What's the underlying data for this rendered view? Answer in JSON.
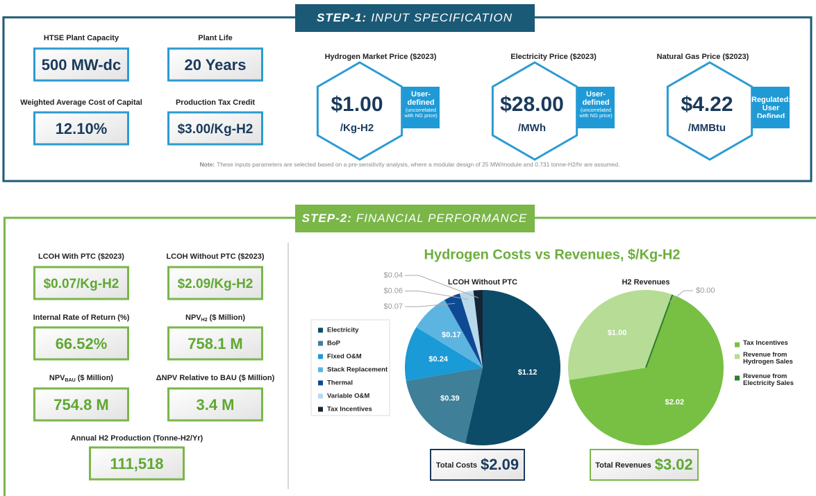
{
  "step1": {
    "step_label": "STEP-1:",
    "title": "INPUT SPECIFICATION",
    "inputs": [
      {
        "label": "HTSE Plant Capacity",
        "value": "500 MW-dc"
      },
      {
        "label": "Plant Life",
        "value": "20 Years"
      },
      {
        "label": "Weighted Average Cost of Capital",
        "value": "12.10%"
      },
      {
        "label": "Production Tax Credit",
        "value": "$3.00/Kg-H2"
      }
    ],
    "prices": [
      {
        "label": "Hydrogen Market Price ($2023)",
        "value": "$1.00",
        "unit": "/Kg-H2",
        "note_title": "User-defined",
        "note_text": "(uncorrelated with NG price)"
      },
      {
        "label": "Electricity Price ($2023)",
        "value": "$28.00",
        "unit": "/MWh",
        "note_title": "User-defined",
        "note_text": "(uncorrelated with NG price)"
      },
      {
        "label": "Natural Gas Price ($2023)",
        "value": "$4.22",
        "unit": "/MMBtu",
        "note_title": "Regulated: User Defined"
      }
    ],
    "note_label": "Note:",
    "note": "These inputs parameters are selected based on a pre-sensitivity analysis, where a modular design of 25 MW/module and 0.731 tonne-H2/hr are assumed."
  },
  "step2": {
    "step_label": "STEP-2:",
    "title": "FINANCIAL PERFORMANCE",
    "metrics": [
      {
        "label": "LCOH With PTC ($2023)",
        "value": "$0.07/Kg-H2"
      },
      {
        "label": "LCOH Without PTC ($2023)",
        "value": "$2.09/Kg-H2"
      },
      {
        "label": "Internal Rate of Return (%)",
        "value": "66.52%"
      },
      {
        "label": "NPV",
        "label_sub": "H2",
        "label_suffix": " ($ Million)",
        "value": "758.1 M"
      },
      {
        "label": "NPV",
        "label_sub": "BAU",
        "label_suffix": " ($ Million)",
        "value": "754.8 M"
      },
      {
        "label": "ΔNPV Relative to BAU ($ Million)",
        "value": "3.4 M"
      },
      {
        "label": "Annual H2 Production (Tonne-H2/Yr)",
        "value": "111,518"
      }
    ],
    "chart_title": "Hydrogen Costs vs Revenues, $/Kg-H2"
  },
  "chart_data": [
    {
      "type": "pie",
      "title": "LCOH Without PTC",
      "categories": [
        "Electricity",
        "BoP",
        "Fixed O&M",
        "Stack Replacement",
        "Thermal",
        "Variable O&M",
        "Tax Incentives"
      ],
      "values": [
        1.12,
        0.39,
        0.24,
        0.17,
        0.07,
        0.06,
        0.04
      ],
      "value_labels": [
        "$1.12",
        "$0.39",
        "$0.24",
        "$0.17",
        "$0.07",
        "$0.06",
        "$0.04"
      ],
      "colors": [
        "#0d4c68",
        "#3f7f98",
        "#1a9ad6",
        "#5cb5e1",
        "#0e4a94",
        "#b8d9ec",
        "#142636"
      ],
      "total_label": "Total Costs",
      "total": "$2.09"
    },
    {
      "type": "pie",
      "title": "H2 Revenues",
      "categories": [
        "Tax Incentives",
        "Revenue from Hydrogen Sales",
        "Revenue from Electricity Sales"
      ],
      "values": [
        2.02,
        1.0,
        0.0
      ],
      "value_labels": [
        "$2.02",
        "$1.00",
        "$0.00"
      ],
      "colors": [
        "#77c043",
        "#b6dc95",
        "#2f7d32"
      ],
      "total_label": "Total Revenues",
      "total": "$3.02"
    }
  ]
}
